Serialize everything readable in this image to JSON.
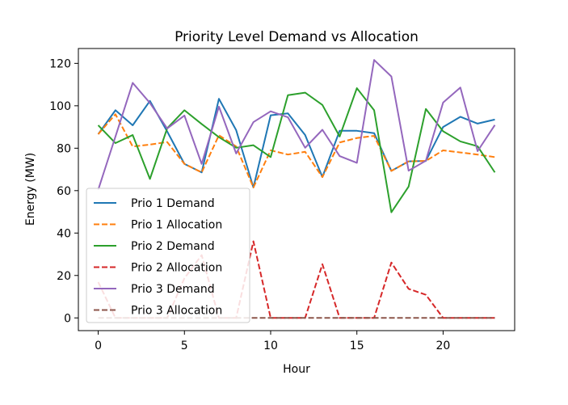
{
  "chart_data": {
    "type": "line",
    "title": "Priority Level Demand vs Allocation",
    "xlabel": "Hour",
    "ylabel": "Energy (MW)",
    "xlim": [
      -1.15,
      24.15
    ],
    "ylim": [
      -6,
      127
    ],
    "xticks": [
      0,
      5,
      10,
      15,
      20
    ],
    "yticks": [
      0,
      20,
      40,
      60,
      80,
      100,
      120
    ],
    "grid": false,
    "legend_position": "lower-left",
    "x": [
      0,
      1,
      2,
      3,
      4,
      5,
      6,
      7,
      8,
      9,
      10,
      11,
      12,
      13,
      14,
      15,
      16,
      17,
      18,
      19,
      20,
      21,
      22,
      23
    ],
    "series": [
      {
        "name": "Prio 1 Demand",
        "color": "#1f77b4",
        "dash": "solid",
        "values": [
          86.6,
          97.9,
          90.8,
          102.3,
          87.9,
          72.6,
          68.6,
          103.3,
          88.5,
          61.5,
          95.5,
          96.4,
          86.2,
          66.4,
          88.2,
          88.2,
          87.1,
          69.3,
          73.8,
          74.0,
          90.0,
          94.8,
          91.6,
          93.5
        ]
      },
      {
        "name": "Prio 1 Allocation",
        "color": "#ff7f0e",
        "dash": "dashed",
        "values": [
          86.6,
          96.0,
          80.8,
          81.7,
          82.9,
          72.6,
          68.6,
          86.1,
          80.8,
          61.5,
          79.0,
          77.0,
          78.3,
          66.4,
          82.7,
          84.8,
          85.8,
          69.3,
          73.8,
          74.0,
          79.0,
          78.0,
          77.0,
          75.8
        ]
      },
      {
        "name": "Prio 2 Demand",
        "color": "#2ca02c",
        "dash": "solid",
        "values": [
          90.8,
          82.4,
          86.2,
          65.5,
          89.4,
          97.9,
          91.4,
          85.2,
          80.2,
          81.4,
          75.8,
          105.0,
          106.2,
          100.4,
          85.5,
          108.3,
          97.9,
          49.8,
          61.9,
          98.5,
          88.0,
          83.2,
          80.9,
          68.6
        ]
      },
      {
        "name": "Prio 2 Allocation",
        "color": "#d62728",
        "dash": "dashed",
        "values": [
          16.9,
          0.0,
          0.0,
          0.0,
          0.0,
          18.7,
          29.6,
          0.0,
          0.0,
          36.1,
          0.0,
          0.0,
          0.0,
          25.3,
          0.0,
          0.0,
          0.0,
          26.1,
          13.7,
          10.9,
          0.0,
          0.0,
          0.0,
          0.0
        ]
      },
      {
        "name": "Prio 3 Demand",
        "color": "#9467bd",
        "dash": "solid",
        "values": [
          60.4,
          85.5,
          110.8,
          101.3,
          89.3,
          95.4,
          72.6,
          99.6,
          77.5,
          92.3,
          97.4,
          94.6,
          80.2,
          88.7,
          76.3,
          73.1,
          121.6,
          113.8,
          69.4,
          74.1,
          101.5,
          108.6,
          78.6,
          90.9
        ]
      },
      {
        "name": "Prio 3 Allocation",
        "color": "#8c564b",
        "dash": "dashed",
        "values": [
          0,
          0,
          0,
          0,
          0,
          0,
          0,
          0,
          0,
          0,
          0,
          0,
          0,
          0,
          0,
          0,
          0,
          0,
          0,
          0,
          0,
          0,
          0,
          0
        ]
      }
    ]
  }
}
